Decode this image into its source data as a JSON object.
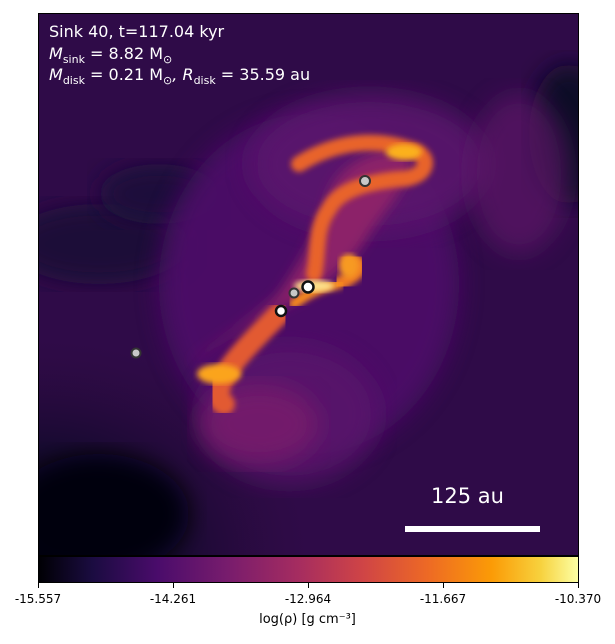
{
  "info": {
    "line1": "Sink 40, t=117.04 kyr",
    "msink_label": "M",
    "msink_sub": "sink",
    "msink_value": " = 8.82 M",
    "msink_unit_sub": "⊙",
    "mdisk_label": "M",
    "mdisk_sub": "disk",
    "mdisk_value": " = 0.21 M",
    "mdisk_unit_sub": "⊙",
    "rdisk_prefix": ", R",
    "rdisk_sub": "disk",
    "rdisk_value": " = 35.59 au"
  },
  "scale_bar": {
    "label": "125 au"
  },
  "colorbar": {
    "ticks": [
      "-15.557",
      "-14.261",
      "-12.964",
      "-11.667",
      "-10.370"
    ],
    "label": "log(ρ) [g cm⁻³]"
  },
  "colors": {
    "background": "#2a0a3a",
    "dark_void": "#000004",
    "filament": "#f08a2a",
    "hot": "#fde08a",
    "sink_fill": "#c8c8c8",
    "sink_edge": "#333333"
  }
}
